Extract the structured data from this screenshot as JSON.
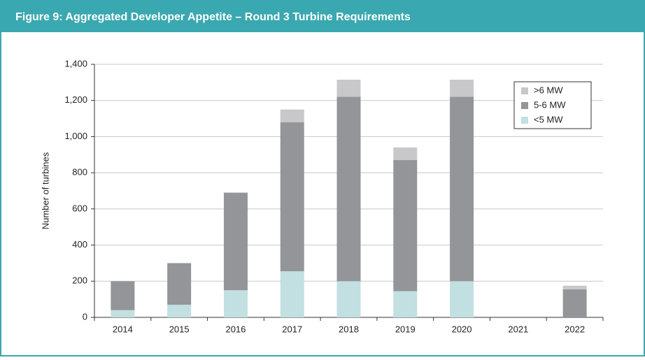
{
  "chart_data": {
    "type": "stacked_bar",
    "title": "Figure 9: Aggregated Developer Appetite – Round 3 Turbine Requirements",
    "y_label": "Number of turbines",
    "categories": [
      "2014",
      "2015",
      "2016",
      "2017",
      "2018",
      "2019",
      "2020",
      "2021",
      "2022"
    ],
    "series": [
      {
        "name": "<5 MW",
        "color": "#c2dfe1",
        "values": [
          40,
          70,
          150,
          255,
          200,
          145,
          200,
          0,
          0
        ]
      },
      {
        "name": "5-6 MW",
        "color": "#939598",
        "values": [
          160,
          230,
          540,
          825,
          1020,
          725,
          1020,
          0,
          155
        ]
      },
      {
        "name": ">6 MW",
        "color": "#c8c8ca",
        "values": [
          0,
          0,
          0,
          70,
          95,
          70,
          95,
          0,
          20
        ]
      }
    ],
    "ylim": [
      0,
      1400
    ],
    "yticks": [
      0,
      200,
      400,
      600,
      800,
      {
        "value": 1000,
        "label": "1,000"
      },
      {
        "value": 1200,
        "label": "1,200"
      },
      {
        "value": 1400,
        "label": "1,400"
      }
    ],
    "grid": true,
    "legend": "upper right"
  }
}
